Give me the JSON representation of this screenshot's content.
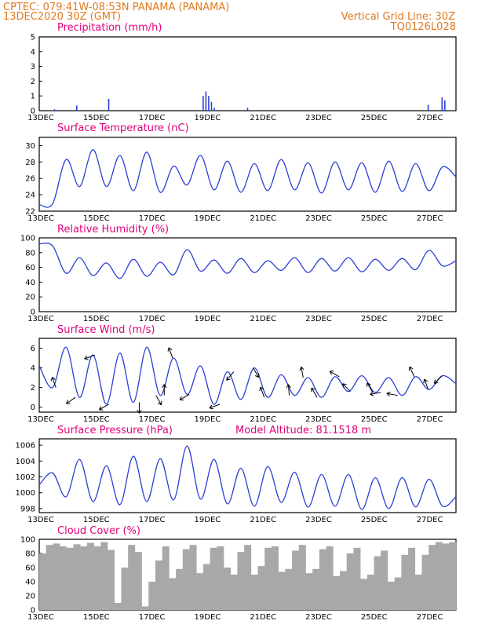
{
  "header": {
    "line1": "CPTEC:   079:41W-08:53N   PANAMA (PANAMA)",
    "line2": "13DEC2020 30Z (GMT)",
    "grid_note": "Vertical Grid Line: 30Z",
    "code": "TQ0126L028"
  },
  "colors": {
    "header": "#e07a1c",
    "title": "#e0007a",
    "line": "#2a3fd6",
    "cloud": "#a8a8a8"
  },
  "x_labels": [
    "13DEC",
    "15DEC",
    "17DEC",
    "19DEC",
    "21DEC",
    "23DEC",
    "25DEC",
    "27DEC"
  ],
  "chart_data": [
    {
      "type": "bar",
      "title": "Precipitation (mm/h)",
      "xlabel": "",
      "ylabel": "",
      "ylim": [
        0,
        5
      ],
      "yticks": [
        "0",
        "1",
        "2",
        "3",
        "4",
        "5"
      ],
      "x_days": [
        0,
        15
      ],
      "events": [
        {
          "day": 0.55,
          "value": 0.1
        },
        {
          "day": 1.35,
          "value": 0.35
        },
        {
          "day": 2.5,
          "value": 0.8
        },
        {
          "day": 5.9,
          "value": 1.0
        },
        {
          "day": 6.0,
          "value": 1.3
        },
        {
          "day": 6.1,
          "value": 1.0
        },
        {
          "day": 6.2,
          "value": 0.6
        },
        {
          "day": 6.3,
          "value": 0.2
        },
        {
          "day": 7.5,
          "value": 0.2
        },
        {
          "day": 14.0,
          "value": 0.4
        },
        {
          "day": 14.5,
          "value": 0.9
        },
        {
          "day": 14.6,
          "value": 0.7
        }
      ]
    },
    {
      "type": "line",
      "title": "Surface Temperature (nC)",
      "ylim": [
        22,
        31
      ],
      "yticks": [
        "22",
        "24",
        "26",
        "28",
        "30"
      ],
      "cycle": {
        "start_day": 0.5,
        "period": 1,
        "base": 25.0,
        "amp": 2.0
      },
      "series": [
        {
          "values": [
            22.8,
            22.9,
            28.3,
            25.0,
            29.5,
            25.0,
            28.8,
            24.5,
            29.2,
            24.3,
            27.5,
            25.2,
            28.8,
            24.6,
            28.1,
            24.3,
            27.8,
            24.5,
            28.3,
            24.6,
            27.9,
            24.2,
            28.0,
            24.6,
            27.9,
            24.3,
            28.1,
            24.4,
            27.8,
            24.5,
            27.4,
            26.2
          ]
        }
      ]
    },
    {
      "type": "line",
      "title": "Relative Humidity (%)",
      "ylim": [
        0,
        100
      ],
      "yticks": [
        "0",
        "20",
        "40",
        "60",
        "80",
        "100"
      ],
      "series": [
        {
          "values": [
            92,
            89,
            52,
            73,
            49,
            66,
            45,
            71,
            48,
            67,
            50,
            84,
            55,
            70,
            52,
            72,
            53,
            69,
            56,
            73,
            53,
            72,
            55,
            73,
            54,
            71,
            56,
            72,
            57,
            83,
            62,
            69
          ]
        }
      ]
    },
    {
      "type": "line",
      "title": "Surface Wind (m/s)",
      "ylim": [
        -0.5,
        7
      ],
      "yticks": [
        "0",
        "2",
        "4",
        "6"
      ],
      "series": [
        {
          "values": [
            4.2,
            2.0,
            6.1,
            1.0,
            5.3,
            0.3,
            5.5,
            0.5,
            6.1,
            1.2,
            5.0,
            1.3,
            4.2,
            0.3,
            3.6,
            0.8,
            4.0,
            1.0,
            3.3,
            1.2,
            3.0,
            1.0,
            3.1,
            1.6,
            3.2,
            1.5,
            3.0,
            1.2,
            3.1,
            1.8,
            3.2,
            2.4
          ]
        }
      ],
      "vectors": [
        {
          "day": 0.6,
          "angle": 110
        },
        {
          "day": 1.3,
          "angle": 215
        },
        {
          "day": 2.0,
          "angle": 200
        },
        {
          "day": 2.5,
          "angle": 210
        },
        {
          "day": 3.6,
          "angle": 270
        },
        {
          "day": 4.2,
          "angle": 300
        },
        {
          "day": 4.5,
          "angle": 90
        },
        {
          "day": 4.8,
          "angle": 110
        },
        {
          "day": 5.4,
          "angle": 210
        },
        {
          "day": 6.5,
          "angle": 200
        },
        {
          "day": 7.0,
          "angle": 230
        },
        {
          "day": 7.7,
          "angle": 300
        },
        {
          "day": 8.1,
          "angle": 110
        },
        {
          "day": 9.0,
          "angle": 95
        },
        {
          "day": 9.5,
          "angle": 100
        },
        {
          "day": 10.0,
          "angle": 120
        },
        {
          "day": 10.8,
          "angle": 150
        },
        {
          "day": 11.2,
          "angle": 135
        },
        {
          "day": 12.0,
          "angle": 120
        },
        {
          "day": 12.3,
          "angle": 190
        },
        {
          "day": 12.9,
          "angle": 170
        },
        {
          "day": 13.5,
          "angle": 115
        },
        {
          "day": 14.0,
          "angle": 110
        },
        {
          "day": 14.5,
          "angle": 225
        }
      ]
    },
    {
      "type": "line",
      "title": "Surface Pressure (hPa)",
      "annotation": "Model Altitude: 81.1518 m",
      "ylim": [
        997.5,
        1006.8
      ],
      "yticks": [
        "998",
        "1000",
        "1002",
        "1004",
        "1006"
      ],
      "series": [
        {
          "values": [
            1001.0,
            1002.5,
            999.5,
            1004.2,
            998.9,
            1003.4,
            998.5,
            1004.6,
            998.9,
            1004.3,
            999.1,
            1005.9,
            999.2,
            1004.2,
            998.6,
            1003.1,
            998.3,
            1003.3,
            998.8,
            1002.6,
            998.2,
            1002.3,
            998.3,
            1002.3,
            997.9,
            1001.9,
            998.0,
            1001.9,
            998.2,
            1001.7,
            998.3,
            999.5
          ]
        }
      ]
    },
    {
      "type": "area",
      "title": "Cloud Cover (%)",
      "ylim": [
        0,
        100
      ],
      "yticks": [
        "0",
        "20",
        "40",
        "60",
        "80",
        "100"
      ],
      "series": [
        {
          "values": [
            80,
            92,
            94,
            90,
            88,
            93,
            90,
            95,
            90,
            96,
            85,
            10,
            60,
            92,
            82,
            5,
            40,
            70,
            90,
            45,
            58,
            86,
            92,
            52,
            65,
            88,
            90,
            60,
            50,
            82,
            92,
            50,
            62,
            88,
            90,
            54,
            58,
            84,
            92,
            52,
            58,
            86,
            90,
            48,
            55,
            80,
            88,
            44,
            50,
            76,
            84,
            40,
            46,
            78,
            88,
            50,
            78,
            92,
            96,
            94,
            96
          ]
        }
      ]
    }
  ]
}
